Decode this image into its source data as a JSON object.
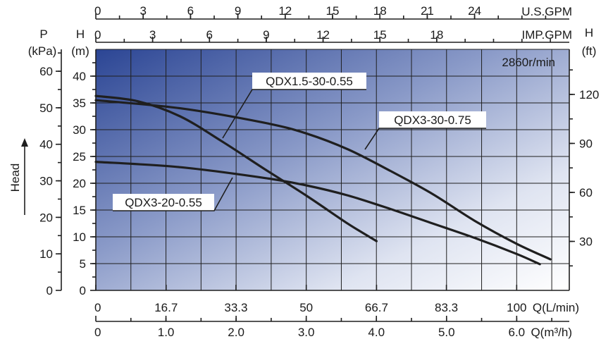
{
  "chart_data": {
    "type": "line",
    "speed_label": "2860r/min",
    "x_axis_bottom": {
      "unit": "Q(L/min)",
      "ticks": [
        "0",
        "16.7",
        "33.3",
        "50",
        "66.7",
        "83.3",
        "100"
      ],
      "lim": [
        0,
        112.5
      ]
    },
    "x_axis_m3h": {
      "unit": "Q(m³/h)",
      "ticks": [
        "0",
        "1.0",
        "2.0",
        "3.0",
        "4.0",
        "5.0",
        "6.0"
      ],
      "lim": [
        0,
        6.75
      ]
    },
    "x_axis_usgpm": {
      "unit": "U.S.GPM",
      "ticks": [
        "0",
        "3",
        "6",
        "9",
        "12",
        "15",
        "18",
        "21",
        "24"
      ],
      "lim": [
        0,
        30
      ]
    },
    "x_axis_impgpm": {
      "unit": "IMP.GPM",
      "ticks": [
        "0",
        "3",
        "6",
        "9",
        "12",
        "15",
        "18"
      ],
      "lim": [
        0,
        25
      ]
    },
    "y_axis_head_m": {
      "symbol": "H",
      "unit": "(m)",
      "ticks": [
        "0",
        "5",
        "10",
        "15",
        "20",
        "25",
        "30",
        "35",
        "40"
      ],
      "lim": [
        0,
        45
      ]
    },
    "y_axis_pressure_kpa": {
      "symbol": "P",
      "unit": "(kPa)",
      "ticks": [
        "0",
        "10",
        "20",
        "30",
        "40",
        "50",
        "60"
      ],
      "lim": [
        0,
        66
      ]
    },
    "y_axis_head_ft": {
      "symbol": "H",
      "unit": "(ft)",
      "ticks": [
        "30",
        "60",
        "90",
        "120"
      ],
      "lim": [
        0,
        147.6
      ]
    },
    "side_label": "Head",
    "grid": true,
    "series": [
      {
        "name": "QDX1.5-30-0.55",
        "x_lmin": [
          0,
          10,
          20,
          30,
          40,
          50,
          60,
          66.7
        ],
        "y_m": [
          36.3,
          35.3,
          32.5,
          27.8,
          22.7,
          17.7,
          12.4,
          9.2
        ]
      },
      {
        "name": "QDX3-30-0.75",
        "x_lmin": [
          0,
          20,
          40,
          50,
          60,
          70,
          80,
          90,
          100,
          108
        ],
        "y_m": [
          35.5,
          34.0,
          31.3,
          29.3,
          26.3,
          22.3,
          18.0,
          13.0,
          8.7,
          5.8
        ]
      },
      {
        "name": "QDX3-20-0.55",
        "x_lmin": [
          0,
          20,
          40,
          50,
          60,
          70,
          80,
          90,
          100,
          105.5
        ],
        "y_m": [
          24.0,
          23.0,
          21.0,
          19.6,
          17.7,
          15.2,
          12.5,
          9.8,
          6.8,
          4.9
        ]
      }
    ]
  }
}
